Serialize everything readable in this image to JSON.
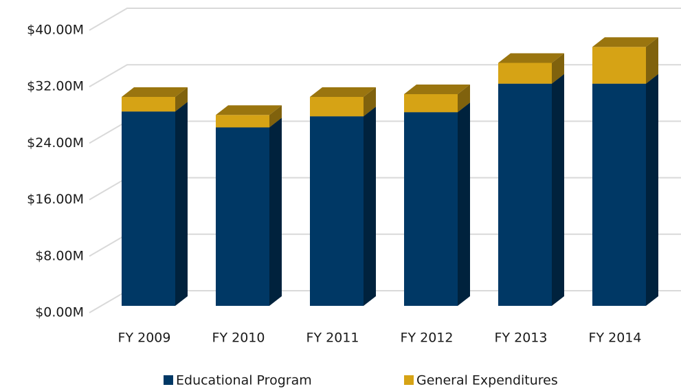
{
  "chart_data": {
    "type": "bar3d_stacked",
    "categories": [
      "FY 2009",
      "FY 2010",
      "FY 2011",
      "FY 2012",
      "FY 2013",
      "FY 2014"
    ],
    "series": [
      {
        "name": "Educational Program",
        "color": "#003865",
        "values": [
          28.0,
          25.7,
          27.3,
          27.9,
          32.0,
          32.0
        ]
      },
      {
        "name": "General Expenditures",
        "color": "#d6a315",
        "values": [
          2.1,
          1.8,
          2.8,
          2.6,
          3.0,
          5.3
        ]
      }
    ],
    "ylim": [
      0,
      40
    ],
    "yticks": [
      {
        "value": 0,
        "label": "$0.00M"
      },
      {
        "value": 8,
        "label": "$8.00M"
      },
      {
        "value": 16,
        "label": "$16.00M"
      },
      {
        "value": 24,
        "label": "$24.00M"
      },
      {
        "value": 32,
        "label": "$32.00M"
      },
      {
        "value": 40,
        "label": "$40.00M"
      }
    ],
    "grid": true,
    "legend": "bottom"
  }
}
